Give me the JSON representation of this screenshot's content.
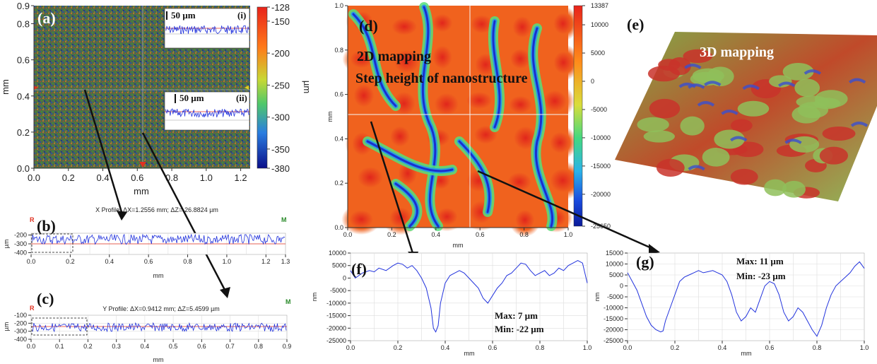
{
  "chart_data": [
    {
      "id": "a",
      "type": "heatmap",
      "panel_label": "(a)",
      "xlabel": "mm",
      "ylabel": "mm",
      "xticks": [
        "0.0",
        "0.2",
        "0.4",
        "0.6",
        "0.8",
        "1.0",
        "1.2"
      ],
      "yticks": [
        "0.0",
        "0.2",
        "0.4",
        "0.6",
        "0.8"
      ],
      "ytop": "0.9",
      "colorbar": {
        "label": "µm",
        "ticks": [
          "-128",
          "-150",
          "-200",
          "-250",
          "-300",
          "-350",
          "-380"
        ]
      },
      "inset_i": {
        "label": "(i)",
        "scale": "50 µm"
      },
      "inset_ii": {
        "label": "(ii)",
        "scale": "50 µm"
      }
    },
    {
      "id": "b",
      "type": "line",
      "panel_label": "(b)",
      "title": "X Profile: ΔX=1.2556 mm; ΔZ=-26.8824 µm",
      "xlabel": "mm",
      "ylabel": "µm",
      "xticks": [
        "0.0",
        "0.2",
        "0.4",
        "0.6",
        "0.8",
        "1.0",
        "1.2",
        "1.3"
      ],
      "yticks": [
        "-200",
        "-300",
        "-400"
      ],
      "marker_left": "R",
      "marker_right": "M",
      "mean": -250
    },
    {
      "id": "c",
      "type": "line",
      "panel_label": "(c)",
      "title": "Y Profile: ΔX=0.9412 mm; ΔZ=5.4599 µm",
      "xlabel": "mm",
      "ylabel": "µm",
      "xticks": [
        "0.0",
        "0.1",
        "0.2",
        "0.3",
        "0.4",
        "0.5",
        "0.6",
        "0.7",
        "0.8",
        "0.9"
      ],
      "yticks": [
        "-100",
        "-200",
        "-300",
        "-400"
      ],
      "marker_left": "R",
      "marker_right": "M",
      "mean": -250
    },
    {
      "id": "d",
      "type": "heatmap",
      "panel_label": "(d)",
      "annotation_1": "2D mapping",
      "annotation_2": "Step height of nanostructure",
      "xlabel": "mm",
      "ylabel": "mm",
      "xticks": [
        "0.0",
        "0.2",
        "0.4",
        "0.6",
        "0.8",
        "1.0"
      ],
      "yticks": [
        "0.0",
        "0.2",
        "0.4",
        "0.6",
        "0.8",
        "1.0"
      ],
      "colorbar": {
        "ticks": [
          "13387",
          "10000",
          "5000",
          "0",
          "-5000",
          "-10000",
          "-15000",
          "-20000",
          "-25650"
        ]
      }
    },
    {
      "id": "e",
      "type": "other",
      "panel_label": "(e)",
      "annotation": "3D mapping"
    },
    {
      "id": "f",
      "type": "line",
      "panel_label": "(f)",
      "xlabel": "mm",
      "ylabel": "nm",
      "xticks": [
        "0.0",
        "0.2",
        "0.4",
        "0.6",
        "0.8",
        "1.0"
      ],
      "yticks": [
        "10000",
        "5000",
        "0",
        "-5000",
        "-10000",
        "-15000",
        "-20000",
        "-25000"
      ],
      "ylim": [
        -25000,
        10000
      ],
      "max_text": "Max: 7 µm",
      "min_text": "Min: -22 µm",
      "x": [
        0.0,
        0.02,
        0.05,
        0.08,
        0.1,
        0.12,
        0.15,
        0.18,
        0.2,
        0.22,
        0.24,
        0.26,
        0.28,
        0.3,
        0.32,
        0.34,
        0.35,
        0.36,
        0.37,
        0.38,
        0.4,
        0.42,
        0.44,
        0.46,
        0.48,
        0.5,
        0.52,
        0.54,
        0.56,
        0.58,
        0.6,
        0.62,
        0.64,
        0.66,
        0.68,
        0.7,
        0.72,
        0.74,
        0.76,
        0.78,
        0.8,
        0.82,
        0.84,
        0.86,
        0.88,
        0.9,
        0.92,
        0.94,
        0.96,
        0.98,
        1.0
      ],
      "y": [
        3000,
        0,
        2000,
        3000,
        2500,
        4000,
        3000,
        5000,
        6000,
        5500,
        4000,
        5000,
        3000,
        0,
        -4000,
        -12000,
        -20000,
        -21500,
        -19000,
        -10000,
        -2000,
        1000,
        2000,
        3000,
        2000,
        0,
        -2000,
        -4000,
        -8000,
        -10000,
        -7000,
        -4000,
        -2000,
        1000,
        2000,
        4000,
        6000,
        5500,
        3000,
        1000,
        2000,
        3000,
        1000,
        2000,
        4000,
        3000,
        5000,
        6000,
        7000,
        6000,
        -2000
      ]
    },
    {
      "id": "g",
      "type": "line",
      "panel_label": "(g)",
      "xlabel": "mm",
      "ylabel": "nm",
      "xticks": [
        "0.0",
        "0.2",
        "0.4",
        "0.6",
        "0.8",
        "1.0"
      ],
      "yticks": [
        "15000",
        "10000",
        "5000",
        "0",
        "-5000",
        "-10000",
        "-15000",
        "-20000",
        "-25000"
      ],
      "ylim": [
        -25000,
        15000
      ],
      "max_text": "Max: 11 µm",
      "min_text": "Min: -23 µm",
      "x": [
        0.0,
        0.02,
        0.04,
        0.06,
        0.08,
        0.1,
        0.12,
        0.14,
        0.15,
        0.16,
        0.18,
        0.2,
        0.22,
        0.24,
        0.26,
        0.28,
        0.3,
        0.32,
        0.34,
        0.36,
        0.38,
        0.4,
        0.42,
        0.44,
        0.46,
        0.48,
        0.5,
        0.52,
        0.54,
        0.56,
        0.58,
        0.6,
        0.62,
        0.64,
        0.66,
        0.68,
        0.7,
        0.72,
        0.74,
        0.76,
        0.78,
        0.8,
        0.82,
        0.84,
        0.86,
        0.88,
        0.9,
        0.92,
        0.94,
        0.96,
        0.98,
        1.0
      ],
      "y": [
        6000,
        2000,
        -2000,
        -8000,
        -14000,
        -18000,
        -20000,
        -21000,
        -20500,
        -16000,
        -10000,
        -4000,
        2000,
        4000,
        5000,
        6000,
        7000,
        6000,
        6500,
        7000,
        6000,
        5000,
        2000,
        -4000,
        -12000,
        -16000,
        -14000,
        -10000,
        -12000,
        -6000,
        0,
        2000,
        1000,
        -4000,
        -12000,
        -16000,
        -14000,
        -10000,
        -12000,
        -16000,
        -20000,
        -23000,
        -18000,
        -10000,
        -4000,
        0,
        2000,
        4000,
        6000,
        9000,
        11000,
        8000
      ]
    }
  ]
}
